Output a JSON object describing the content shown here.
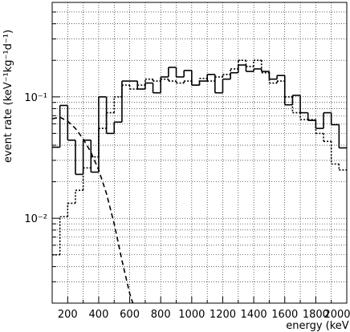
{
  "chart_data": {
    "type": "histogram",
    "xlabel": "energy (keV)",
    "ylabel": "event rate (keV⁻¹kg⁻¹d⁻¹)",
    "log_y": true,
    "grid": true,
    "xlim": [
      100,
      2000
    ],
    "ylim": [
      0.002,
      0.6
    ],
    "xticks": [
      200,
      400,
      600,
      800,
      1000,
      1200,
      1400,
      1600,
      1800,
      2000
    ],
    "xminor_ticks": [
      100,
      300,
      500,
      700,
      900,
      1100,
      1300,
      1500,
      1700,
      1900
    ],
    "yticks": [
      {
        "value": 0.01,
        "label": "10⁻²"
      },
      {
        "value": 0.1,
        "label": "10⁻¹"
      }
    ],
    "yminor_ticks": [
      0.003,
      0.004,
      0.005,
      0.006,
      0.007,
      0.008,
      0.009,
      0.02,
      0.03,
      0.04,
      0.05,
      0.06,
      0.07,
      0.08,
      0.09,
      0.2,
      0.3,
      0.4,
      0.5
    ],
    "bins": [
      100,
      150,
      200,
      250,
      300,
      350,
      400,
      450,
      500,
      550,
      600,
      650,
      700,
      750,
      800,
      850,
      900,
      950,
      1000,
      1050,
      1100,
      1150,
      1200,
      1250,
      1300,
      1350,
      1400,
      1450,
      1500,
      1550,
      1600,
      1650,
      1700,
      1750,
      1800,
      1850,
      1900,
      1950,
      2000
    ],
    "series": [
      {
        "style": "solid",
        "color": "#000000",
        "values": [
          0.0385,
          0.085,
          0.044,
          0.023,
          0.044,
          0.024,
          0.1,
          0.05,
          0.062,
          0.135,
          0.135,
          0.116,
          0.13,
          0.108,
          0.146,
          0.175,
          0.146,
          0.165,
          0.125,
          0.135,
          0.153,
          0.108,
          0.14,
          0.158,
          0.183,
          0.162,
          0.17,
          0.162,
          0.14,
          0.15,
          0.086,
          0.103,
          0.074,
          0.064,
          0.055,
          0.074,
          0.059,
          0.038
        ]
      },
      {
        "style": "dotted",
        "color": "#000000",
        "values": [
          0.005,
          0.0103,
          0.0133,
          0.017,
          0.026,
          0.032,
          0.055,
          0.074,
          0.1,
          0.125,
          0.116,
          0.125,
          0.14,
          0.135,
          0.14,
          0.135,
          0.13,
          0.135,
          0.125,
          0.142,
          0.135,
          0.146,
          0.153,
          0.17,
          0.2,
          0.178,
          0.2,
          0.158,
          0.13,
          0.135,
          0.1,
          0.074,
          0.065,
          0.065,
          0.05,
          0.043,
          0.028,
          0.025
        ]
      }
    ],
    "curve": {
      "style": "dashed",
      "color": "#000000",
      "x": [
        100,
        150,
        200,
        250,
        300,
        350,
        400,
        450,
        500,
        550,
        600,
        620
      ],
      "values": [
        0.066,
        0.068,
        0.063,
        0.055,
        0.045,
        0.035,
        0.025,
        0.016,
        0.009,
        0.0045,
        0.0024,
        0.002
      ]
    }
  }
}
